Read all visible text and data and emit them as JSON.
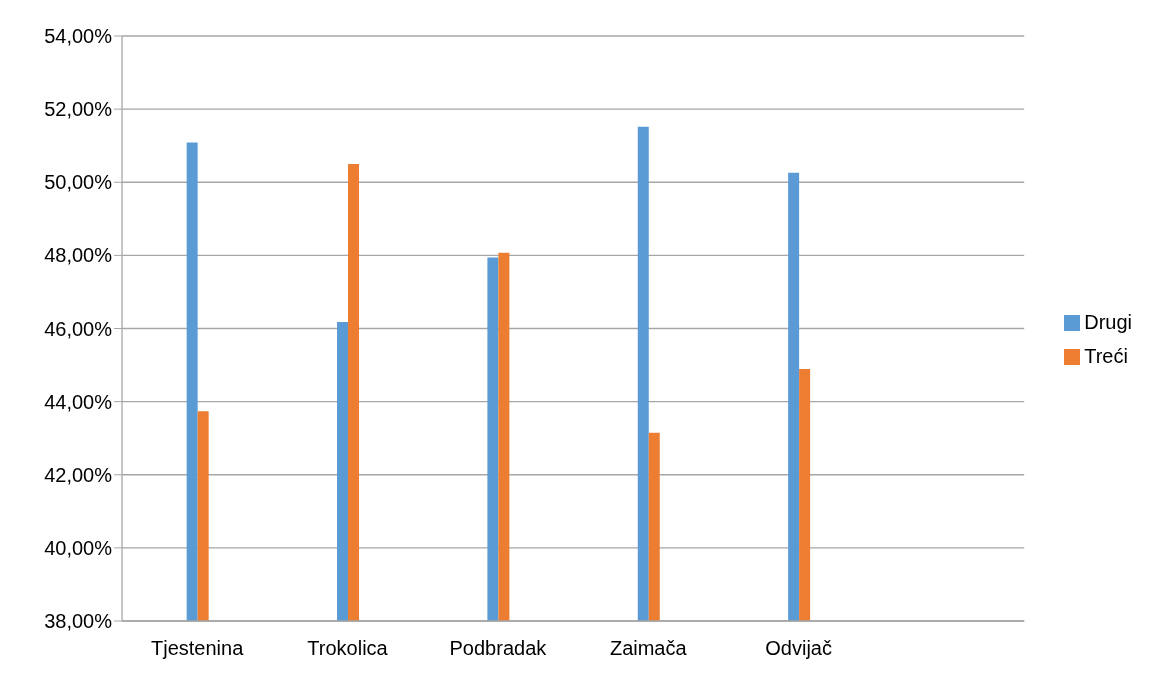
{
  "chart_data": {
    "type": "bar",
    "categories": [
      "Tjestenina",
      "Trokolica",
      "Podbradak",
      "Zaimača",
      "Odvijač",
      null
    ],
    "series": [
      {
        "name": "Drugi",
        "color": "#5b9bd5",
        "values": [
          51.09,
          46.18,
          47.94,
          51.52,
          50.26,
          null
        ]
      },
      {
        "name": "Treći",
        "color": "#ed7d31",
        "values": [
          43.74,
          50.5,
          48.07,
          43.15,
          44.89,
          null
        ]
      }
    ],
    "ylim": [
      38,
      54
    ],
    "yticks": [
      {
        "value": 38,
        "label": "38,00%"
      },
      {
        "value": 40,
        "label": "40,00%"
      },
      {
        "value": 42,
        "label": "42,00%"
      },
      {
        "value": 44,
        "label": "44,00%"
      },
      {
        "value": 46,
        "label": "46,00%"
      },
      {
        "value": 48,
        "label": "48,00%"
      },
      {
        "value": 50,
        "label": "50,00%"
      },
      {
        "value": 52,
        "label": "52,00%"
      },
      {
        "value": 54,
        "label": "54,00%"
      }
    ],
    "grid": "y",
    "legend": "right"
  }
}
